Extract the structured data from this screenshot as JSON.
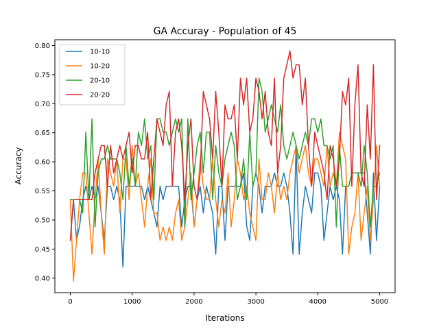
{
  "chart_data": {
    "type": "line",
    "title": "GA Accuray - Population of 45",
    "xlabel": "Iterations",
    "ylabel": "Accuracy",
    "xlim": [
      -250,
      5250
    ],
    "ylim": [
      0.375,
      0.81
    ],
    "xticks": [
      0,
      1000,
      2000,
      3000,
      4000,
      5000
    ],
    "xtick_labels": [
      "0",
      "1000",
      "2000",
      "3000",
      "4000",
      "5000"
    ],
    "yticks": [
      0.4,
      0.45,
      0.5,
      0.55,
      0.6,
      0.65,
      0.7,
      0.75,
      0.8
    ],
    "ytick_labels": [
      "0.40",
      "0.45",
      "0.50",
      "0.55",
      "0.60",
      "0.65",
      "0.70",
      "0.75",
      "0.80"
    ],
    "grid": false,
    "legend_position": "top-left",
    "x": [
      0,
      50,
      100,
      150,
      200,
      250,
      300,
      350,
      400,
      450,
      500,
      550,
      600,
      650,
      700,
      750,
      800,
      850,
      900,
      950,
      1000,
      1050,
      1100,
      1150,
      1200,
      1250,
      1300,
      1350,
      1400,
      1450,
      1500,
      1550,
      1600,
      1650,
      1700,
      1750,
      1800,
      1850,
      1900,
      1950,
      2000,
      2050,
      2100,
      2150,
      2200,
      2250,
      2300,
      2350,
      2400,
      2450,
      2500,
      2550,
      2600,
      2650,
      2700,
      2750,
      2800,
      2850,
      2900,
      2950,
      3000,
      3050,
      3100,
      3150,
      3200,
      3250,
      3300,
      3350,
      3400,
      3450,
      3500,
      3550,
      3600,
      3650,
      3700,
      3750,
      3800,
      3850,
      3900,
      3950,
      4000,
      4050,
      4100,
      4150,
      4200,
      4250,
      4300,
      4350,
      4400,
      4450,
      4500,
      4550,
      4600,
      4650,
      4700,
      4750,
      4800,
      4850,
      4900,
      4950,
      5000
    ],
    "series": [
      {
        "name": "10-10",
        "color": "#1f77b4",
        "values": [
          0.465,
          0.535,
          0.465,
          0.49,
          0.535,
          0.558,
          0.535,
          0.558,
          0.535,
          0.558,
          0.512,
          0.465,
          0.558,
          0.558,
          0.535,
          0.558,
          0.535,
          0.419,
          0.558,
          0.558,
          0.558,
          0.558,
          0.558,
          0.558,
          0.535,
          0.558,
          0.535,
          0.512,
          0.488,
          0.558,
          0.535,
          0.558,
          0.558,
          0.558,
          0.558,
          0.558,
          0.488,
          0.535,
          0.558,
          0.558,
          0.49,
          0.535,
          0.558,
          0.512,
          0.558,
          0.535,
          0.512,
          0.441,
          0.558,
          0.558,
          0.465,
          0.558,
          0.558,
          0.558,
          0.558,
          0.558,
          0.581,
          0.49,
          0.465,
          0.558,
          0.581,
          0.558,
          0.512,
          0.558,
          0.558,
          0.558,
          0.581,
          0.558,
          0.558,
          0.581,
          0.558,
          0.512,
          0.441,
          0.628,
          0.441,
          0.512,
          0.558,
          0.535,
          0.512,
          0.581,
          0.581,
          0.558,
          0.465,
          0.512,
          0.558,
          0.535,
          0.558,
          0.535,
          0.441,
          0.558,
          0.558,
          0.581,
          0.581,
          0.581,
          0.581,
          0.581,
          0.512,
          0.441,
          0.581,
          0.465,
          0.558
        ]
      },
      {
        "name": "10-20",
        "color": "#ff7f0e",
        "values": [
          0.535,
          0.395,
          0.465,
          0.535,
          0.581,
          0.581,
          0.512,
          0.441,
          0.535,
          0.605,
          0.512,
          0.441,
          0.605,
          0.581,
          0.558,
          0.605,
          0.512,
          0.605,
          0.605,
          0.535,
          0.628,
          0.558,
          0.581,
          0.535,
          0.488,
          0.558,
          0.605,
          0.512,
          0.512,
          0.465,
          0.488,
          0.465,
          0.488,
          0.465,
          0.512,
          0.535,
          0.465,
          0.488,
          0.535,
          0.581,
          0.488,
          0.535,
          0.605,
          0.558,
          0.535,
          0.535,
          0.605,
          0.535,
          0.488,
          0.535,
          0.512,
          0.581,
          0.488,
          0.535,
          0.605,
          0.581,
          0.535,
          0.558,
          0.512,
          0.488,
          0.465,
          0.605,
          0.535,
          0.535,
          0.581,
          0.558,
          0.512,
          0.581,
          0.535,
          0.558,
          0.535,
          0.581,
          0.605,
          0.628,
          0.581,
          0.605,
          0.628,
          0.581,
          0.558,
          0.605,
          0.605,
          0.581,
          0.558,
          0.628,
          0.558,
          0.581,
          0.558,
          0.651,
          0.628,
          0.605,
          0.441,
          0.488,
          0.512,
          0.581,
          0.465,
          0.512,
          0.558,
          0.465,
          0.535,
          0.628,
          0.558
        ]
      },
      {
        "name": "20-10",
        "color": "#2ca02c",
        "values": [
          0.535,
          0.535,
          0.535,
          0.535,
          0.512,
          0.651,
          0.535,
          0.674,
          0.488,
          0.581,
          0.605,
          0.605,
          0.628,
          0.605,
          0.605,
          0.605,
          0.581,
          0.535,
          0.628,
          0.558,
          0.605,
          0.558,
          0.651,
          0.628,
          0.674,
          0.605,
          0.628,
          0.535,
          0.674,
          0.674,
          0.651,
          0.651,
          0.628,
          0.651,
          0.674,
          0.651,
          0.674,
          0.488,
          0.674,
          0.535,
          0.581,
          0.628,
          0.651,
          0.581,
          0.651,
          0.651,
          0.535,
          0.628,
          0.581,
          0.558,
          0.605,
          0.628,
          0.651,
          0.628,
          0.535,
          0.558,
          0.605,
          0.535,
          0.651,
          0.558,
          0.581,
          0.744,
          0.721,
          0.651,
          0.674,
          0.698,
          0.674,
          0.651,
          0.698,
          0.628,
          0.605,
          0.628,
          0.651,
          0.628,
          0.605,
          0.628,
          0.651,
          0.628,
          0.674,
          0.674,
          0.651,
          0.674,
          0.628,
          0.628,
          0.605,
          0.628,
          0.488,
          0.628,
          0.558,
          0.558,
          0.558,
          0.581,
          0.581,
          0.581,
          0.558,
          0.628,
          0.581,
          0.488,
          0.558,
          0.558,
          0.581
        ]
      },
      {
        "name": "20-20",
        "color": "#d62728",
        "values": [
          0.465,
          0.535,
          0.535,
          0.535,
          0.535,
          0.535,
          0.535,
          0.535,
          0.581,
          0.605,
          0.628,
          0.628,
          0.558,
          0.628,
          0.581,
          0.605,
          0.628,
          0.605,
          0.628,
          0.651,
          0.581,
          0.628,
          0.628,
          0.605,
          0.605,
          0.651,
          0.535,
          0.605,
          0.674,
          0.651,
          0.628,
          0.698,
          0.721,
          0.558,
          0.651,
          0.674,
          0.628,
          0.535,
          0.628,
          0.674,
          0.558,
          0.535,
          0.581,
          0.721,
          0.698,
          0.674,
          0.605,
          0.721,
          0.651,
          0.558,
          0.698,
          0.674,
          0.674,
          0.698,
          0.605,
          0.744,
          0.698,
          0.744,
          0.651,
          0.674,
          0.744,
          0.721,
          0.674,
          0.721,
          0.651,
          0.628,
          0.744,
          0.581,
          0.628,
          0.744,
          0.767,
          0.791,
          0.744,
          0.767,
          0.767,
          0.698,
          0.744,
          0.628,
          0.558,
          0.651,
          0.628,
          0.605,
          0.581,
          0.535,
          0.628,
          0.605,
          0.558,
          0.605,
          0.721,
          0.698,
          0.744,
          0.558,
          0.698,
          0.767,
          0.581,
          0.558,
          0.698,
          0.605,
          0.767,
          0.535,
          0.628
        ]
      }
    ]
  }
}
